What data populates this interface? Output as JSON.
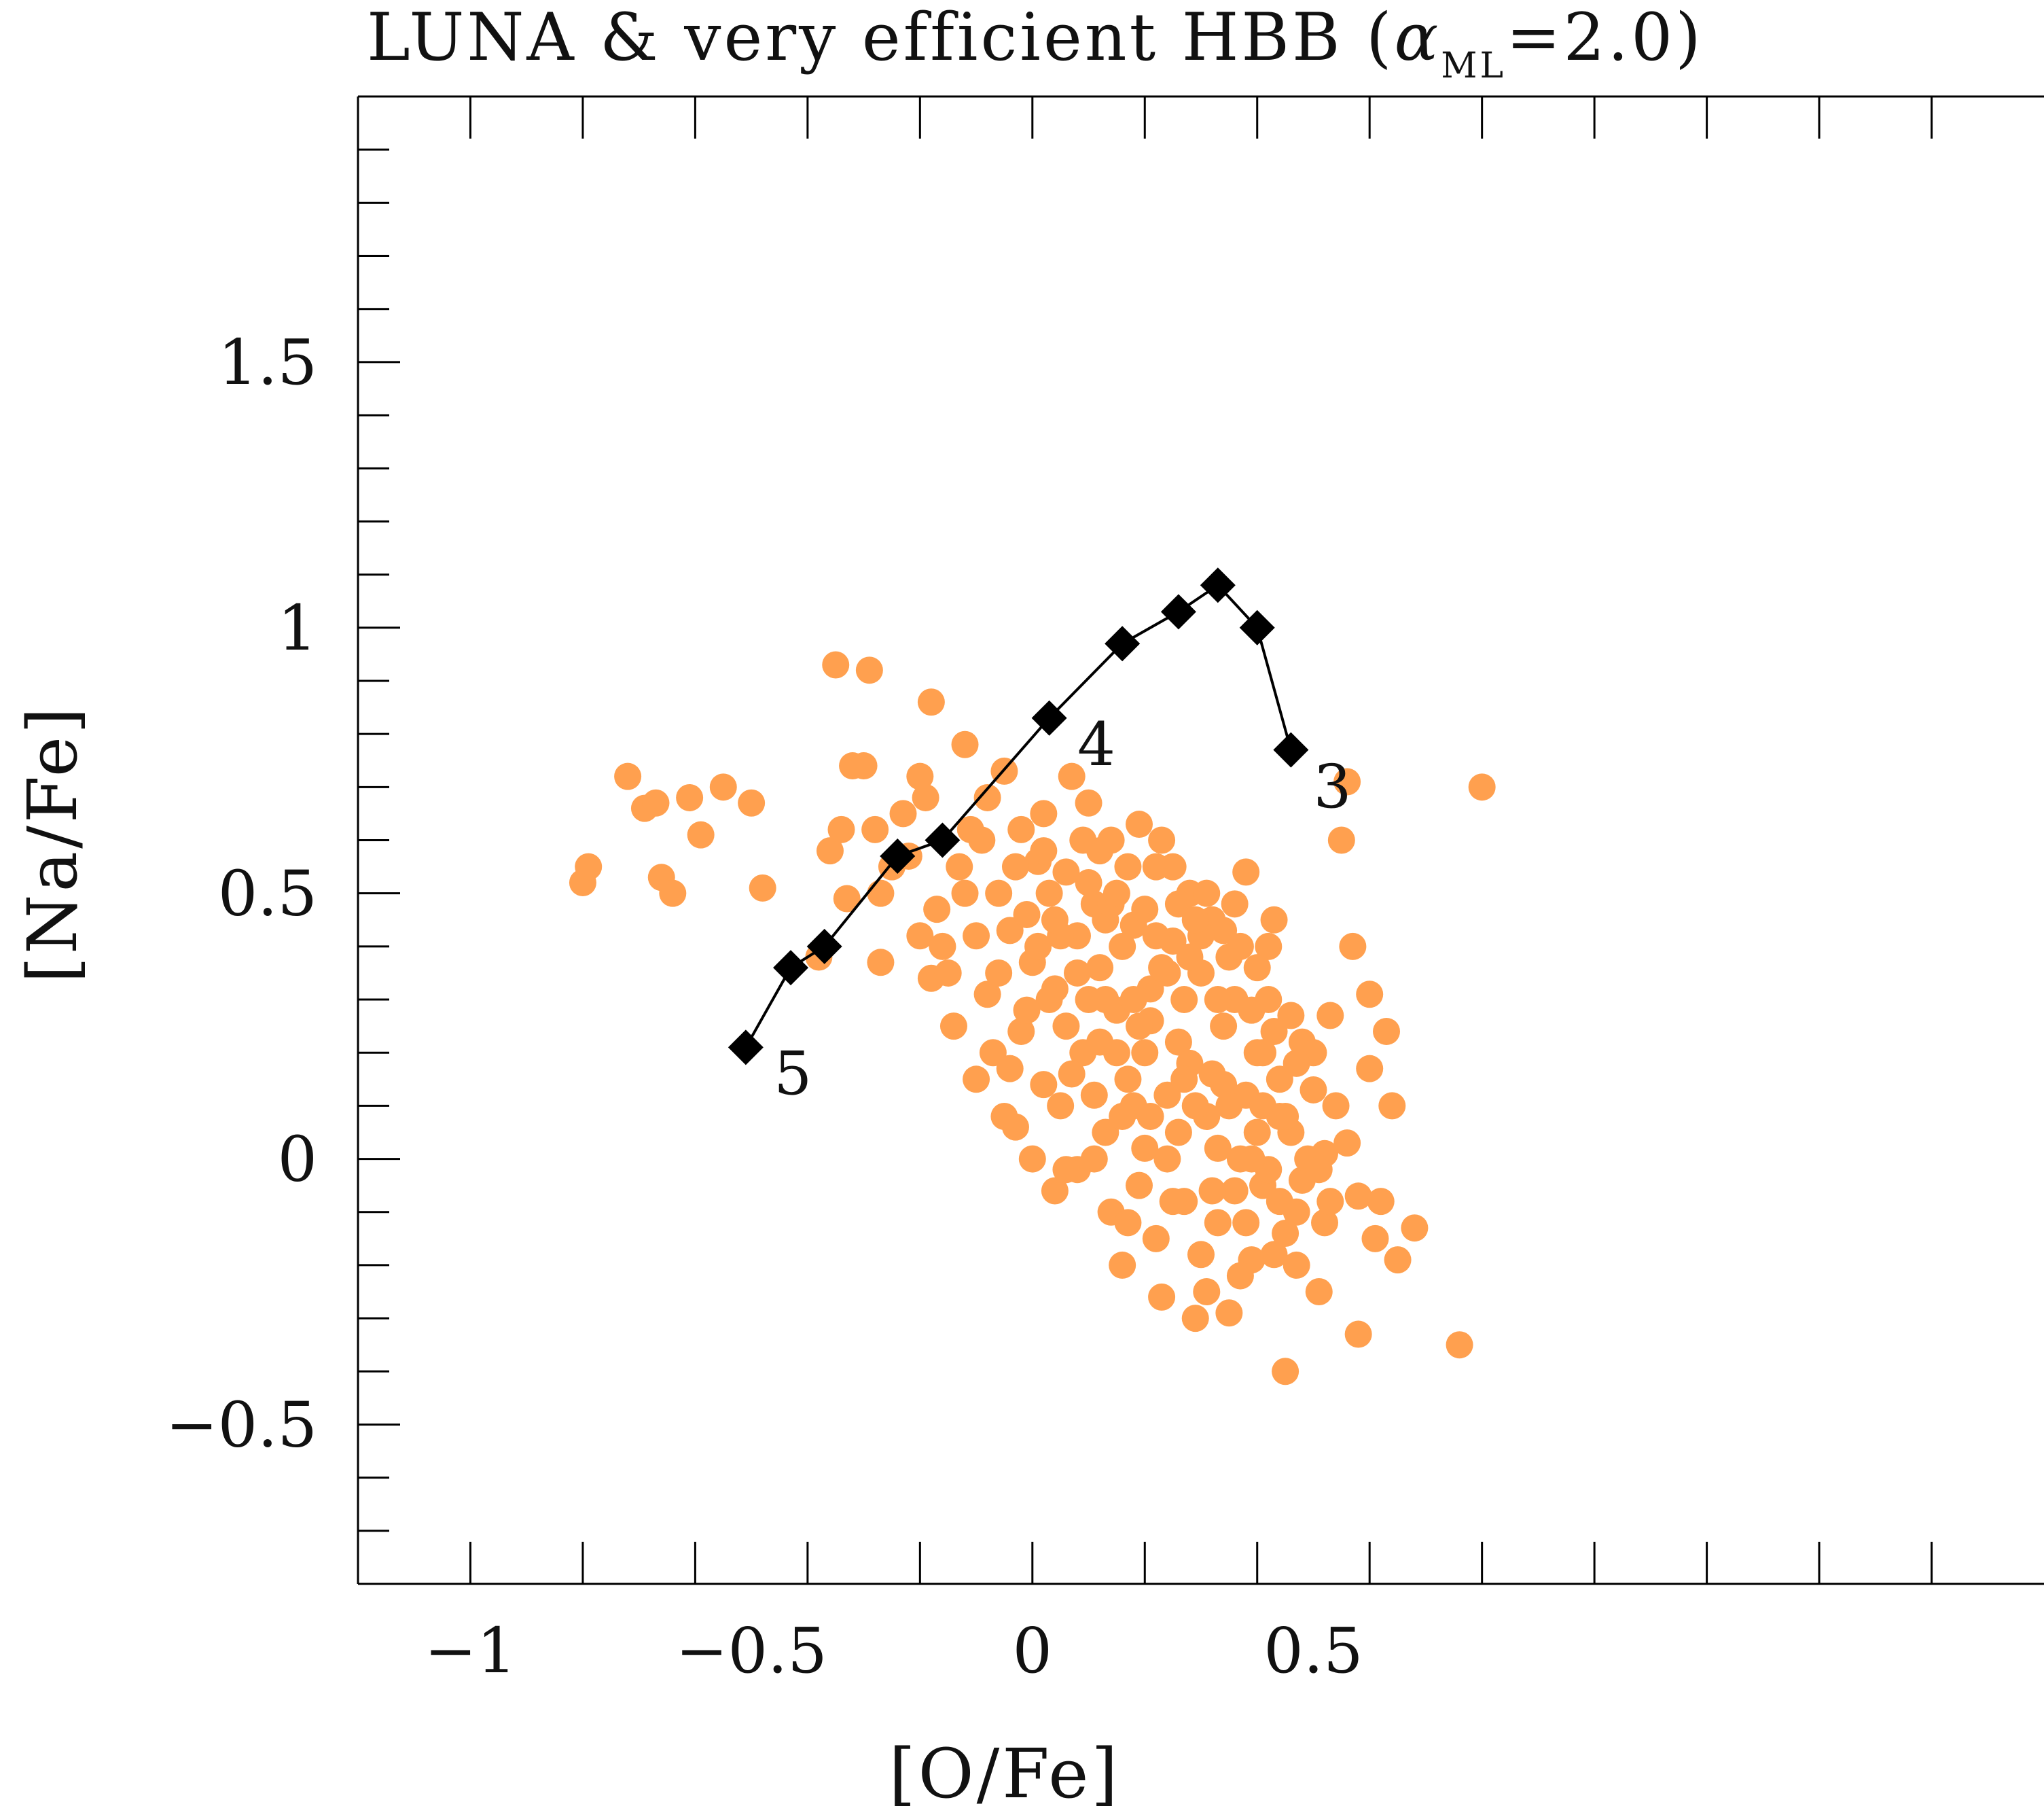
{
  "chart_data": {
    "type": "scatter",
    "title": {
      "prefix": "LUNA & very efficient HBB (",
      "alpha_symbol": "α",
      "alpha_subscript": "ML",
      "suffix": "=2.0)"
    },
    "xlabel": "[O/Fe]",
    "ylabel": "[Na/Fe]",
    "xlim": [
      -1.2,
      1.8
    ],
    "ylim": [
      -0.8,
      2.0
    ],
    "x_ticks": [
      {
        "value": -1,
        "label": "−1"
      },
      {
        "value": -0.5,
        "label": "−0.5"
      },
      {
        "value": 0,
        "label": "0"
      },
      {
        "value": 0.5,
        "label": "0.5"
      }
    ],
    "y_ticks": [
      {
        "value": -0.5,
        "label": "−0.5"
      },
      {
        "value": 0,
        "label": "0"
      },
      {
        "value": 0.5,
        "label": "0.5"
      },
      {
        "value": 1,
        "label": "1"
      },
      {
        "value": 1.5,
        "label": "1.5"
      }
    ],
    "x_major_ticks": [
      -1.0,
      -0.8,
      -0.6,
      -0.4,
      -0.2,
      0.0,
      0.2,
      0.4,
      0.6,
      0.8,
      1.0,
      1.2,
      1.4,
      1.6
    ],
    "y_minor_step": 0.1,
    "colors": {
      "observations": "#FFA04F",
      "model": "#000000"
    },
    "series": [
      {
        "name": "observations",
        "type": "scatter",
        "marker": "circle",
        "points": [
          [
            -0.8,
            0.52
          ],
          [
            -0.79,
            0.55
          ],
          [
            -0.72,
            0.72
          ],
          [
            -0.69,
            0.66
          ],
          [
            -0.67,
            0.67
          ],
          [
            -0.66,
            0.53
          ],
          [
            -0.64,
            0.5
          ],
          [
            -0.61,
            0.68
          ],
          [
            -0.59,
            0.61
          ],
          [
            -0.55,
            0.7
          ],
          [
            -0.5,
            0.67
          ],
          [
            -0.48,
            0.51
          ],
          [
            -0.35,
            0.93
          ],
          [
            -0.29,
            0.92
          ],
          [
            -0.18,
            0.86
          ],
          [
            -0.38,
            0.38
          ],
          [
            -0.36,
            0.58
          ],
          [
            -0.34,
            0.62
          ],
          [
            -0.33,
            0.49
          ],
          [
            -0.32,
            0.74
          ],
          [
            -0.3,
            0.74
          ],
          [
            -0.28,
            0.62
          ],
          [
            -0.27,
            0.5
          ],
          [
            -0.27,
            0.37
          ],
          [
            -0.25,
            0.55
          ],
          [
            -0.23,
            0.65
          ],
          [
            -0.22,
            0.57
          ],
          [
            -0.2,
            0.72
          ],
          [
            -0.19,
            0.68
          ],
          [
            -0.2,
            0.42
          ],
          [
            -0.18,
            0.34
          ],
          [
            -0.17,
            0.47
          ],
          [
            -0.16,
            0.4
          ],
          [
            -0.15,
            0.35
          ],
          [
            -0.13,
            0.55
          ],
          [
            -0.12,
            0.78
          ],
          [
            -0.11,
            0.62
          ],
          [
            -0.1,
            0.42
          ],
          [
            -0.08,
            0.31
          ],
          [
            -0.07,
            0.2
          ],
          [
            -0.06,
            0.5
          ],
          [
            -0.05,
            0.73
          ],
          [
            -0.04,
            0.43
          ],
          [
            -0.03,
            0.06
          ],
          [
            -0.02,
            0.24
          ],
          [
            -0.01,
            0.46
          ],
          [
            0.0,
            0.37
          ],
          [
            0.01,
            0.56
          ],
          [
            0.02,
            0.65
          ],
          [
            0.03,
            0.3
          ],
          [
            0.04,
            -0.06
          ],
          [
            0.05,
            0.1
          ],
          [
            0.06,
            0.54
          ],
          [
            0.07,
            0.72
          ],
          [
            0.08,
            0.42
          ],
          [
            0.09,
            0.2
          ],
          [
            0.1,
            0.67
          ],
          [
            0.11,
            0.48
          ],
          [
            0.12,
            0.36
          ],
          [
            0.13,
            0.05
          ],
          [
            0.14,
            0.6
          ],
          [
            0.15,
            0.28
          ],
          [
            0.16,
            -0.2
          ],
          [
            0.17,
            0.15
          ],
          [
            0.18,
            0.44
          ],
          [
            0.19,
            0.63
          ],
          [
            0.2,
            0.02
          ],
          [
            0.21,
            0.32
          ],
          [
            0.22,
            0.55
          ],
          [
            0.23,
            -0.26
          ],
          [
            0.24,
            0.12
          ],
          [
            0.25,
            0.41
          ],
          [
            0.26,
            0.22
          ],
          [
            0.27,
            -0.08
          ],
          [
            0.28,
            0.5
          ],
          [
            0.29,
            -0.3
          ],
          [
            0.3,
            0.35
          ],
          [
            0.31,
            0.08
          ],
          [
            0.32,
            0.45
          ],
          [
            0.33,
            -0.12
          ],
          [
            0.34,
            0.25
          ],
          [
            0.35,
            -0.29
          ],
          [
            0.36,
            0.3
          ],
          [
            0.37,
            0.0
          ],
          [
            0.38,
            0.54
          ],
          [
            0.39,
            -0.19
          ],
          [
            0.4,
            0.2
          ],
          [
            0.41,
            -0.05
          ],
          [
            0.42,
            0.3
          ],
          [
            0.43,
            -0.18
          ],
          [
            0.44,
            0.08
          ],
          [
            0.45,
            -0.4
          ],
          [
            0.46,
            0.27
          ],
          [
            0.47,
            -0.1
          ],
          [
            0.48,
            0.22
          ],
          [
            0.5,
            0.13
          ],
          [
            0.51,
            -0.25
          ],
          [
            0.52,
            0.01
          ],
          [
            0.53,
            0.27
          ],
          [
            0.55,
            0.6
          ],
          [
            0.56,
            0.71
          ],
          [
            0.57,
            0.4
          ],
          [
            0.58,
            -0.33
          ],
          [
            0.6,
            0.31
          ],
          [
            0.61,
            -0.15
          ],
          [
            0.62,
            -0.08
          ],
          [
            0.63,
            0.24
          ],
          [
            0.64,
            0.1
          ],
          [
            0.65,
            -0.19
          ],
          [
            0.68,
            -0.13
          ],
          [
            0.76,
            -0.35
          ],
          [
            0.8,
            0.7
          ],
          [
            -0.02,
            0.62
          ],
          [
            0.02,
            0.14
          ],
          [
            0.05,
            0.42
          ],
          [
            0.08,
            -0.02
          ],
          [
            0.1,
            0.3
          ],
          [
            0.12,
            0.58
          ],
          [
            0.14,
            -0.1
          ],
          [
            0.16,
            0.4
          ],
          [
            0.18,
            0.1
          ],
          [
            0.2,
            0.47
          ],
          [
            0.22,
            -0.15
          ],
          [
            0.24,
            0.35
          ],
          [
            0.26,
            0.05
          ],
          [
            0.28,
            0.38
          ],
          [
            0.3,
            -0.18
          ],
          [
            0.32,
            0.16
          ],
          [
            0.34,
            0.43
          ],
          [
            0.36,
            -0.06
          ],
          [
            0.38,
            0.12
          ],
          [
            0.4,
            0.36
          ],
          [
            0.42,
            -0.02
          ],
          [
            0.44,
            0.15
          ],
          [
            0.46,
            0.05
          ],
          [
            0.48,
            -0.04
          ],
          [
            0.5,
            0.2
          ],
          [
            0.52,
            -0.12
          ],
          [
            0.54,
            0.1
          ],
          [
            0.56,
            0.03
          ],
          [
            0.58,
            -0.07
          ],
          [
            0.6,
            0.17
          ],
          [
            0.03,
            0.5
          ],
          [
            0.06,
            0.25
          ],
          [
            0.09,
            0.6
          ],
          [
            0.11,
            0.0
          ],
          [
            0.13,
            0.45
          ],
          [
            0.15,
            0.2
          ],
          [
            0.17,
            0.55
          ],
          [
            0.19,
            -0.05
          ],
          [
            0.21,
            0.26
          ],
          [
            0.23,
            0.6
          ],
          [
            0.25,
            -0.08
          ],
          [
            0.27,
            0.3
          ],
          [
            0.29,
            0.1
          ],
          [
            0.31,
            0.5
          ],
          [
            0.33,
            0.02
          ],
          [
            0.35,
            0.38
          ],
          [
            0.37,
            -0.22
          ],
          [
            0.39,
            0.28
          ],
          [
            0.41,
            0.1
          ],
          [
            0.43,
            0.24
          ],
          [
            0.45,
            -0.14
          ],
          [
            0.47,
            0.18
          ],
          [
            0.49,
            0.0
          ],
          [
            0.51,
            -0.02
          ],
          [
            0.53,
            -0.08
          ],
          [
            -0.09,
            0.6
          ],
          [
            -0.06,
            0.35
          ],
          [
            -0.04,
            0.17
          ],
          [
            -0.01,
            0.28
          ],
          [
            0.01,
            0.4
          ],
          [
            0.04,
            0.32
          ],
          [
            0.07,
            0.16
          ],
          [
            0.1,
            0.52
          ],
          [
            0.12,
            0.22
          ],
          [
            0.14,
            0.48
          ],
          [
            0.16,
            0.08
          ],
          [
            0.18,
            0.3
          ],
          [
            0.2,
            0.2
          ],
          [
            0.22,
            0.42
          ],
          [
            0.24,
            0.0
          ],
          [
            0.26,
            0.48
          ],
          [
            0.28,
            0.18
          ],
          [
            0.3,
            0.42
          ],
          [
            0.32,
            -0.06
          ],
          [
            0.34,
            0.14
          ],
          [
            0.36,
            0.48
          ],
          [
            0.38,
            -0.12
          ],
          [
            0.4,
            0.05
          ],
          [
            0.42,
            0.4
          ],
          [
            0.44,
            -0.08
          ],
          [
            -0.14,
            0.25
          ],
          [
            -0.12,
            0.5
          ],
          [
            -0.1,
            0.15
          ],
          [
            -0.08,
            0.68
          ],
          [
            -0.05,
            0.08
          ],
          [
            -0.03,
            0.55
          ],
          [
            0.0,
            0.0
          ],
          [
            0.02,
            0.58
          ],
          [
            0.04,
            0.45
          ],
          [
            0.06,
            -0.02
          ],
          [
            0.08,
            0.35
          ],
          [
            0.11,
            0.12
          ],
          [
            0.13,
            0.3
          ],
          [
            0.15,
            0.5
          ],
          [
            0.17,
            -0.12
          ],
          [
            0.19,
            0.25
          ],
          [
            0.21,
            0.08
          ],
          [
            0.23,
            0.36
          ],
          [
            0.25,
            0.55
          ],
          [
            0.27,
            0.15
          ],
          [
            0.29,
            0.45
          ],
          [
            0.31,
            -0.25
          ],
          [
            0.33,
            0.3
          ],
          [
            0.35,
            0.1
          ],
          [
            0.37,
            0.4
          ],
          [
            0.39,
            0.0
          ],
          [
            0.41,
            0.2
          ],
          [
            0.43,
            0.45
          ],
          [
            0.45,
            0.08
          ],
          [
            0.47,
            -0.2
          ]
        ]
      },
      {
        "name": "model",
        "type": "line",
        "marker": "diamond",
        "points": [
          [
            -0.51,
            0.21
          ],
          [
            -0.43,
            0.36
          ],
          [
            -0.37,
            0.4
          ],
          [
            -0.24,
            0.57
          ],
          [
            -0.16,
            0.6
          ],
          [
            0.03,
            0.83
          ],
          [
            0.16,
            0.97
          ],
          [
            0.26,
            1.03
          ],
          [
            0.33,
            1.08
          ],
          [
            0.4,
            1.0
          ],
          [
            0.46,
            0.77
          ]
        ]
      }
    ],
    "annotations": [
      {
        "text": "5",
        "x": -0.46,
        "y": 0.16
      },
      {
        "text": "4",
        "x": 0.08,
        "y": 0.78
      },
      {
        "text": "3",
        "x": 0.5,
        "y": 0.7
      }
    ]
  }
}
